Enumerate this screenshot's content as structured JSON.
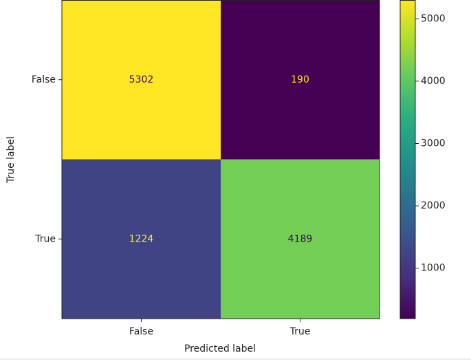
{
  "chart_data": {
    "type": "heatmap",
    "rows": [
      "False",
      "True"
    ],
    "columns": [
      "False",
      "True"
    ],
    "values": [
      [
        5302,
        190
      ],
      [
        1224,
        4189
      ]
    ],
    "ylabel": "True label",
    "xlabel": "Predicted label",
    "colormap": "viridis",
    "clim": [
      190,
      5302
    ],
    "cticks": [
      1000,
      2000,
      3000,
      4000,
      5000
    ]
  }
}
